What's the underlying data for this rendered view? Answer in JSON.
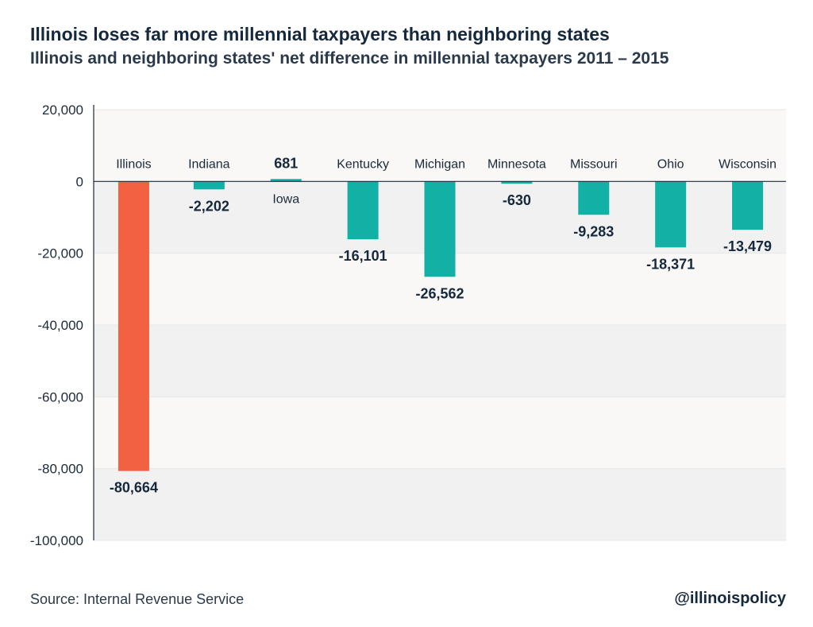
{
  "header": {
    "title": "Illinois loses far more millennial taxpayers than neighboring states",
    "subtitle": "Illinois and neighboring states' net difference in millennial taxpayers 2011 – 2015"
  },
  "footer": {
    "source": "Source: Internal Revenue Service",
    "handle": "@illinoispolicy"
  },
  "chart_data": {
    "type": "bar",
    "categories": [
      "Illinois",
      "Indiana",
      "Iowa",
      "Kentucky",
      "Michigan",
      "Minnesota",
      "Missouri",
      "Ohio",
      "Wisconsin"
    ],
    "values": [
      -80664,
      -2202,
      681,
      -16101,
      -26562,
      -630,
      -9283,
      -18371,
      -13479
    ],
    "value_labels": [
      "-80,664",
      "-2,202",
      "681",
      "-16,101",
      "-26,562",
      "-630",
      "-9,283",
      "-18,371",
      "-13,479"
    ],
    "title": "Illinois loses far more millennial taxpayers than neighboring states",
    "subtitle": "Illinois and neighboring states' net difference in millennial taxpayers 2011 – 2015",
    "xlabel": "",
    "ylabel": "",
    "ylim": [
      -100000,
      20000
    ],
    "yticks": [
      20000,
      0,
      -20000,
      -40000,
      -60000,
      -80000,
      -100000
    ],
    "ytick_labels": [
      "20,000",
      "0",
      "-20,000",
      "-40,000",
      "-60,000",
      "-80,000",
      "-100,000"
    ],
    "grid": true,
    "colors": {
      "highlight": "#f26241",
      "default": "#13b0a5",
      "band_light": "#f9f8f6",
      "band_dark": "#f1f1f2",
      "axis": "#1b2a3a"
    },
    "highlight_category": "Illinois"
  }
}
